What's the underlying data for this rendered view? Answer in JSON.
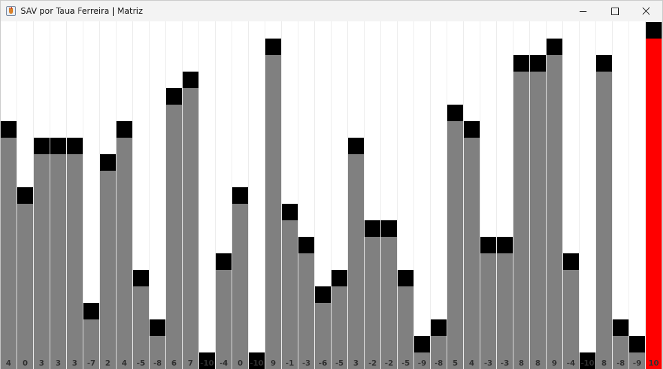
{
  "window": {
    "title": "SAV por Taua Ferreira | Matriz",
    "icon": "java-cup-icon"
  },
  "colors": {
    "bar": "#808080",
    "cap": "#000000",
    "highlight": "#ff0000",
    "background": "#ffffff"
  },
  "chart_data": {
    "type": "bar",
    "ylim": [
      -11,
      10
    ],
    "highlight_index": 39,
    "values": [
      4,
      0,
      3,
      3,
      3,
      -7,
      2,
      4,
      -5,
      -8,
      6,
      7,
      -10,
      -4,
      0,
      -10,
      9,
      -1,
      -3,
      -6,
      -5,
      3,
      -2,
      -2,
      -5,
      -9,
      -8,
      5,
      4,
      -3,
      -3,
      8,
      8,
      9,
      -4,
      -10,
      8,
      -8,
      -9,
      10
    ],
    "labels": [
      "4",
      "0",
      "3",
      "3",
      "3",
      "-7",
      "2",
      "4",
      "-5",
      "-8",
      "6",
      "7",
      "-10",
      "-4",
      "0",
      "-10",
      "9",
      "-1",
      "-3",
      "-6",
      "-5",
      "3",
      "-2",
      "-2",
      "-5",
      "-9",
      "-8",
      "5",
      "4",
      "-3",
      "-3",
      "8",
      "8",
      "9",
      "-4",
      "-10",
      "8",
      "-8",
      "-9",
      "10"
    ]
  }
}
